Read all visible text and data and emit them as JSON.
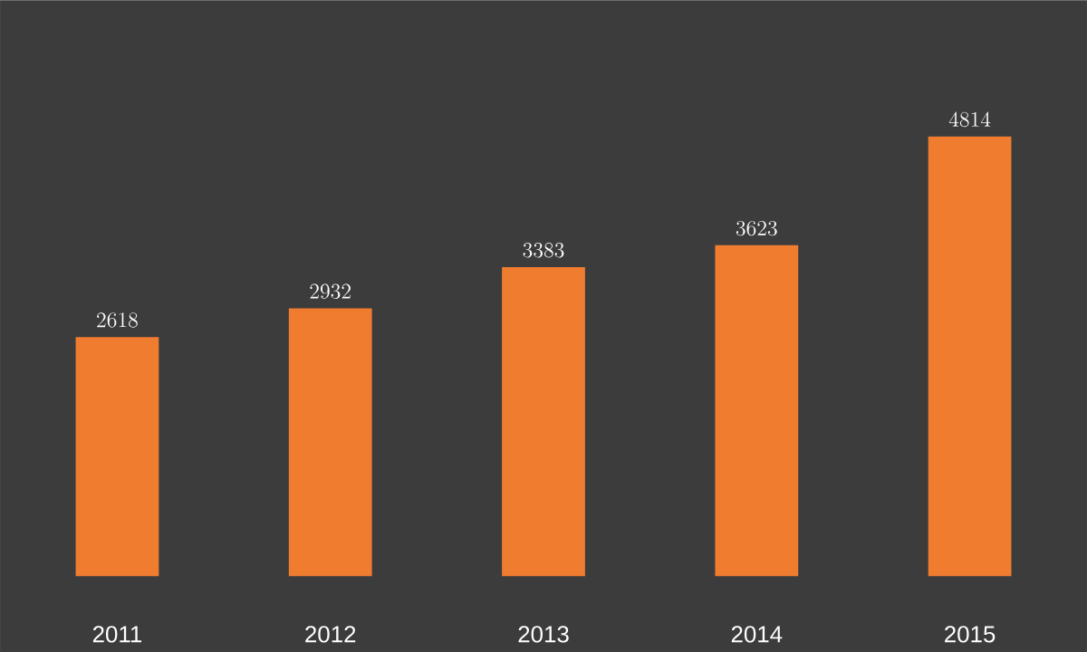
{
  "chart_data": {
    "type": "bar",
    "categories": [
      "2011",
      "2012",
      "2013",
      "2014",
      "2015"
    ],
    "values": [
      2618,
      2932,
      3383,
      3623,
      4814
    ],
    "color": "#f07c30",
    "data_labels": true
  }
}
